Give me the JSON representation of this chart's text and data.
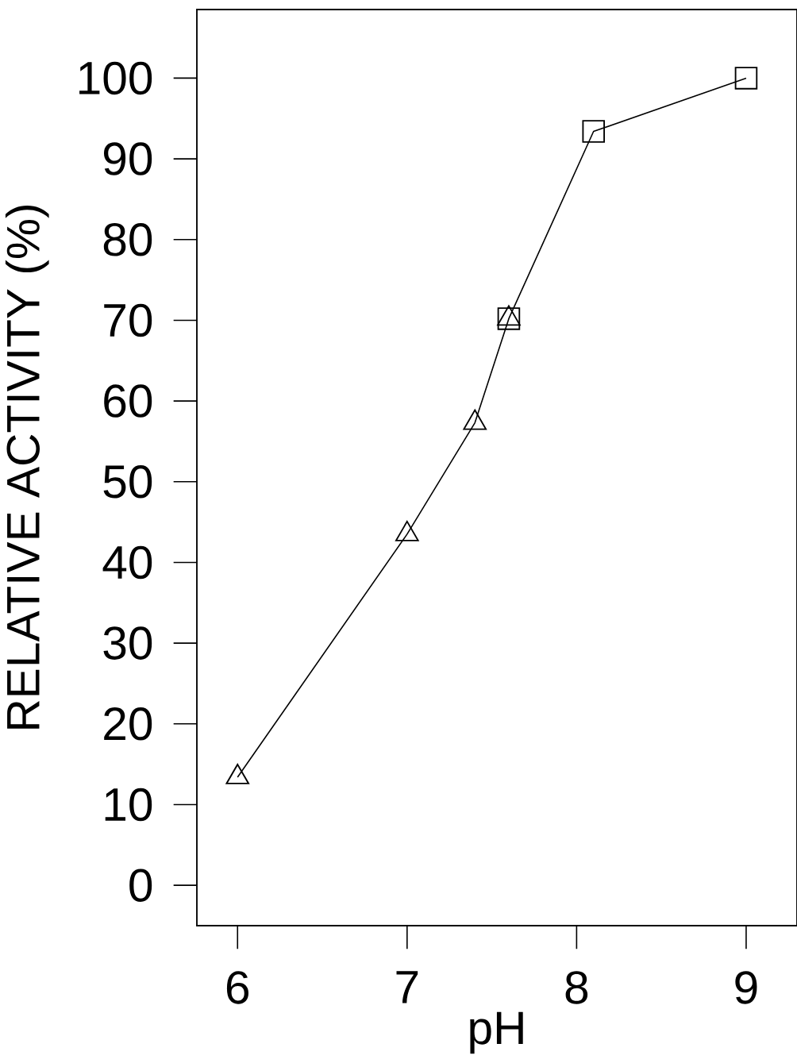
{
  "chart_data": {
    "type": "line",
    "xlabel": "pH",
    "ylabel": "RELATIVE ACTIVITY (%)",
    "xlim": [
      5.76,
      9.3
    ],
    "ylim": [
      -5,
      108.5
    ],
    "xticks": [
      6,
      7,
      8,
      9
    ],
    "yticks": [
      0,
      10,
      20,
      30,
      40,
      50,
      60,
      70,
      80,
      90,
      100
    ],
    "grid": false,
    "series": [
      {
        "color": "#000000",
        "marker": "none",
        "line_style": "solid",
        "x": [
          6,
          7,
          7.4,
          7.6,
          8.1,
          9
        ],
        "values": [
          13.4,
          43.5,
          57.3,
          70.2,
          93.4,
          100
        ]
      },
      {
        "type": "scatter",
        "color": "#000000",
        "marker": "square",
        "x": [
          7.6,
          8.1,
          9
        ],
        "values": [
          70.2,
          93.4,
          100
        ]
      },
      {
        "type": "scatter",
        "color": "#000000",
        "marker": "triangle",
        "x": [
          6,
          7,
          7.4,
          7.6
        ],
        "values": [
          13.4,
          43.5,
          57.3,
          70.2
        ]
      }
    ]
  }
}
